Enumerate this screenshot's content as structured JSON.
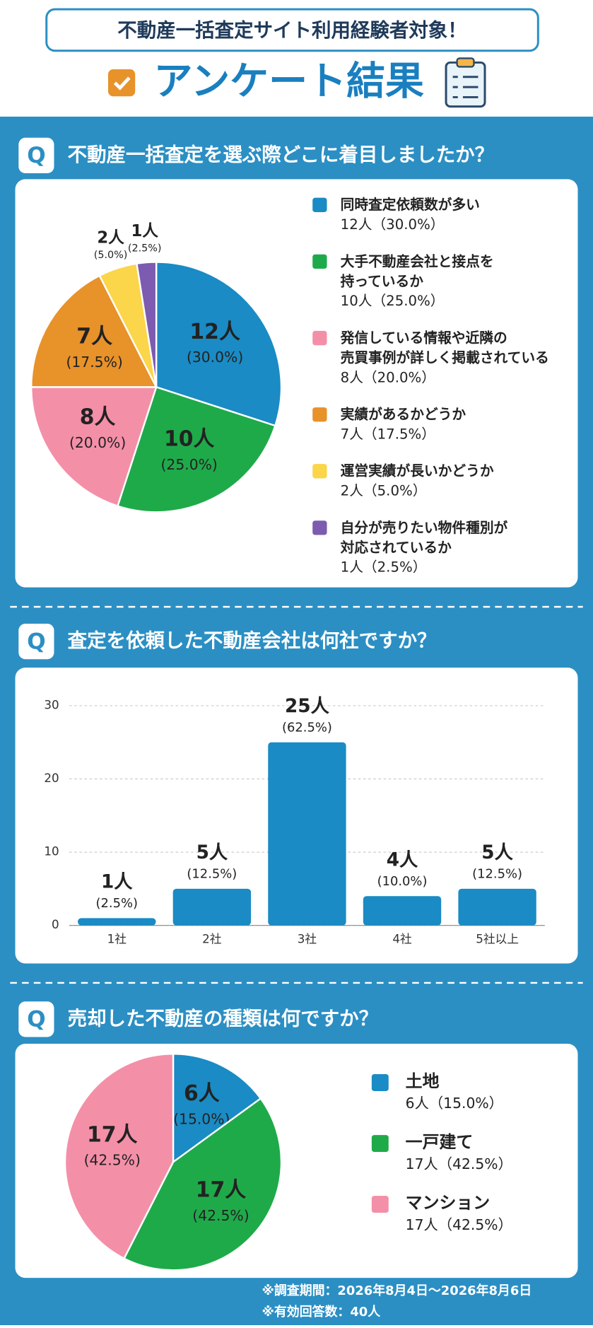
{
  "header": {
    "subtitle": "不動産一括査定サイト利用経験者対象！",
    "title": "アンケート結果"
  },
  "question_mark": "Q",
  "chart_data": [
    {
      "type": "pie",
      "title": "不動産一括査定を選ぶ際どこに着目しましたか？",
      "categories": [
        "同時査定依頼数が多い",
        "大手不動産会社と接点を\n持っているか",
        "発信している情報や近隣の\n売買事例が詳しく掲載されている",
        "実績があるかどうか",
        "運営実績が長いかどうか",
        "自分が売りたい物件種別が\n対応されているか"
      ],
      "values": [
        12,
        10,
        8,
        7,
        2,
        1
      ],
      "value_labels": [
        "12人",
        "10人",
        "8人",
        "7人",
        "2人",
        "1人"
      ],
      "percent_labels": [
        "(30.0%)",
        "(25.0%)",
        "(20.0%)",
        "(17.5%)",
        "(5.0%)",
        "(2.5%)"
      ],
      "legend_values": [
        "12人（30.0%）",
        "10人（25.0%）",
        "8人（20.0%）",
        "7人（17.5%）",
        "2人（5.0%）",
        "1人（2.5%）"
      ],
      "colors": [
        "#1a8bc4",
        "#1faa4a",
        "#f48fa8",
        "#e8922a",
        "#fbd54a",
        "#7d5bb0"
      ]
    },
    {
      "type": "bar",
      "title": "査定を依頼した不動産会社は何社ですか？",
      "categories": [
        "1社",
        "2社",
        "3社",
        "4社",
        "5社以上"
      ],
      "values": [
        1,
        5,
        25,
        4,
        5
      ],
      "value_labels": [
        "1人",
        "5人",
        "25人",
        "4人",
        "5人"
      ],
      "percent_labels": [
        "(2.5%)",
        "(12.5%)",
        "(62.5%)",
        "(10.0%)",
        "(12.5%)"
      ],
      "color": "#1a8bc4",
      "ylim": [
        0,
        30
      ],
      "yticks": [
        0,
        10,
        20,
        30
      ],
      "grid": true
    },
    {
      "type": "pie",
      "title": "売却した不動産の種類は何ですか？",
      "categories": [
        "土地",
        "一戸建て",
        "マンション"
      ],
      "values": [
        6,
        17,
        17
      ],
      "value_labels": [
        "6人",
        "17人",
        "17人"
      ],
      "percent_labels": [
        "(15.0%)",
        "(42.5%)",
        "(42.5%)"
      ],
      "legend_values": [
        "6人（15.0%）",
        "17人（42.5%）",
        "17人（42.5%）"
      ],
      "colors": [
        "#1a8bc4",
        "#1faa4a",
        "#f48fa8"
      ]
    }
  ],
  "footer": [
    "※調査期間：2026年8月4日～2026年8月6日",
    "※有効回答数：40人"
  ]
}
